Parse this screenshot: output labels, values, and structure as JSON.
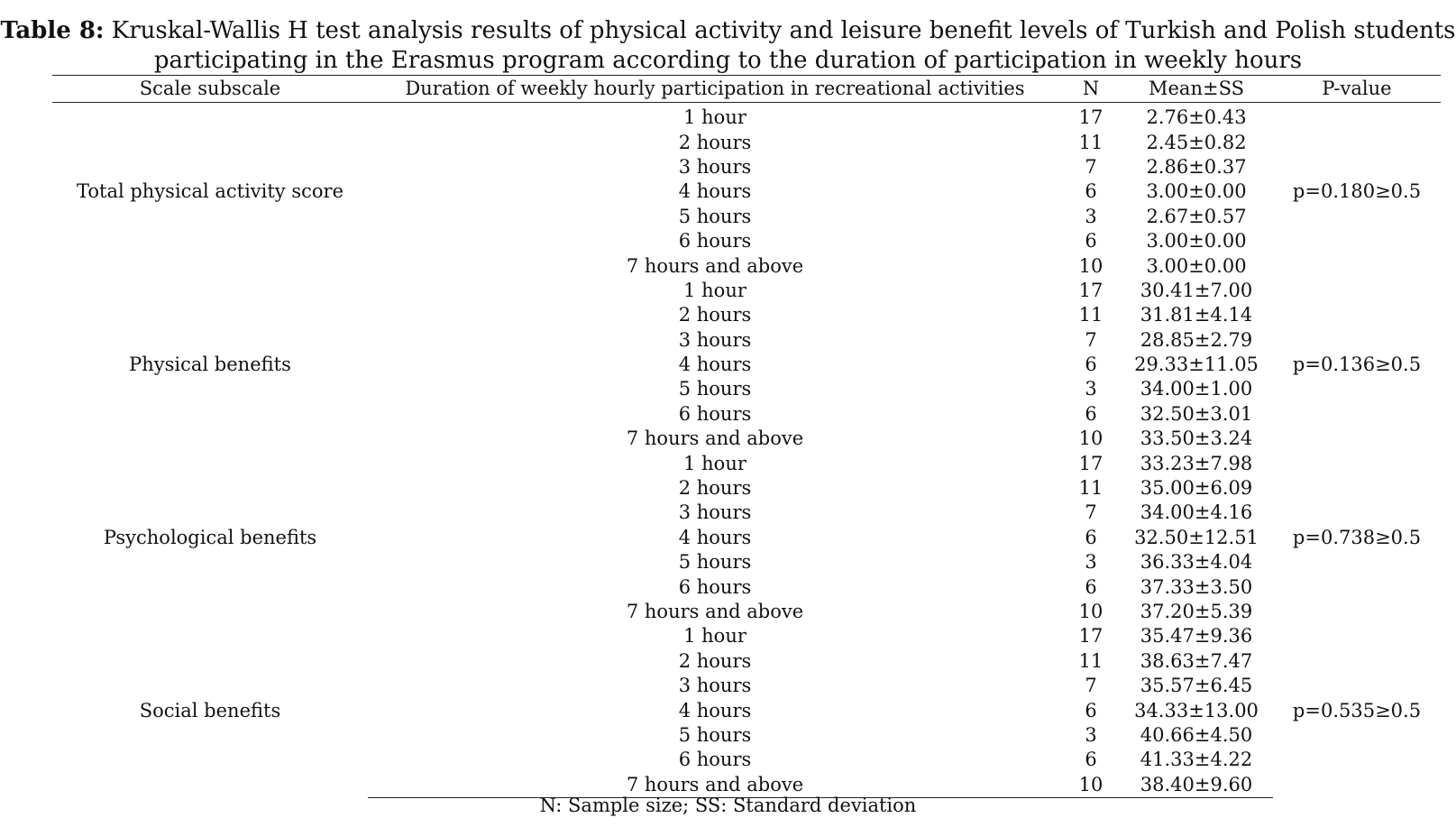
{
  "caption": {
    "label": "Table 8:",
    "text": "Kruskal-Wallis H test analysis results of physical activity and leisure benefit levels of Turkish and Polish students participating in the Erasmus program according to the duration of participation in weekly hours"
  },
  "headers": {
    "scale": "Scale subscale",
    "duration": "Duration of weekly hourly participation in recreational activities",
    "n": "N",
    "mean": "Mean±SS",
    "p": "P-value"
  },
  "groups": [
    {
      "scale": "Total physical activity score",
      "p": "p=0.180≥0.5",
      "rows": [
        {
          "duration": "1 hour",
          "n": "17",
          "mean": "2.76±0.43"
        },
        {
          "duration": "2 hours",
          "n": "11",
          "mean": "2.45±0.82"
        },
        {
          "duration": "3 hours",
          "n": "7",
          "mean": "2.86±0.37"
        },
        {
          "duration": "4 hours",
          "n": "6",
          "mean": "3.00±0.00"
        },
        {
          "duration": "5 hours",
          "n": "3",
          "mean": "2.67±0.57"
        },
        {
          "duration": "6 hours",
          "n": "6",
          "mean": "3.00±0.00"
        },
        {
          "duration": "7 hours and above",
          "n": "10",
          "mean": "3.00±0.00"
        }
      ]
    },
    {
      "scale": "Physical benefits",
      "p": "p=0.136≥0.5",
      "rows": [
        {
          "duration": "1 hour",
          "n": "17",
          "mean": "30.41±7.00"
        },
        {
          "duration": "2 hours",
          "n": "11",
          "mean": "31.81±4.14"
        },
        {
          "duration": "3 hours",
          "n": "7",
          "mean": "28.85±2.79"
        },
        {
          "duration": "4 hours",
          "n": "6",
          "mean": "29.33±11.05"
        },
        {
          "duration": "5 hours",
          "n": "3",
          "mean": "34.00±1.00"
        },
        {
          "duration": "6 hours",
          "n": "6",
          "mean": "32.50±3.01"
        },
        {
          "duration": "7 hours and above",
          "n": "10",
          "mean": "33.50±3.24"
        }
      ]
    },
    {
      "scale": "Psychological benefits",
      "p": "p=0.738≥0.5",
      "rows": [
        {
          "duration": "1 hour",
          "n": "17",
          "mean": "33.23±7.98"
        },
        {
          "duration": "2 hours",
          "n": "11",
          "mean": "35.00±6.09"
        },
        {
          "duration": "3 hours",
          "n": "7",
          "mean": "34.00±4.16"
        },
        {
          "duration": "4 hours",
          "n": "6",
          "mean": "32.50±12.51"
        },
        {
          "duration": "5 hours",
          "n": "3",
          "mean": "36.33±4.04"
        },
        {
          "duration": "6 hours",
          "n": "6",
          "mean": "37.33±3.50"
        },
        {
          "duration": "7 hours and above",
          "n": "10",
          "mean": "37.20±5.39"
        }
      ]
    },
    {
      "scale": "Social benefits",
      "p": "p=0.535≥0.5",
      "rows": [
        {
          "duration": "1 hour",
          "n": "17",
          "mean": "35.47±9.36"
        },
        {
          "duration": "2 hours",
          "n": "11",
          "mean": "38.63±7.47"
        },
        {
          "duration": "3 hours",
          "n": "7",
          "mean": "35.57±6.45"
        },
        {
          "duration": "4 hours",
          "n": "6",
          "mean": "34.33±13.00"
        },
        {
          "duration": "5 hours",
          "n": "3",
          "mean": "40.66±4.50"
        },
        {
          "duration": "6 hours",
          "n": "6",
          "mean": "41.33±4.22"
        },
        {
          "duration": "7 hours and above",
          "n": "10",
          "mean": "38.40±9.60"
        }
      ]
    }
  ],
  "footnote": "N: Sample size; SS: Standard deviation"
}
